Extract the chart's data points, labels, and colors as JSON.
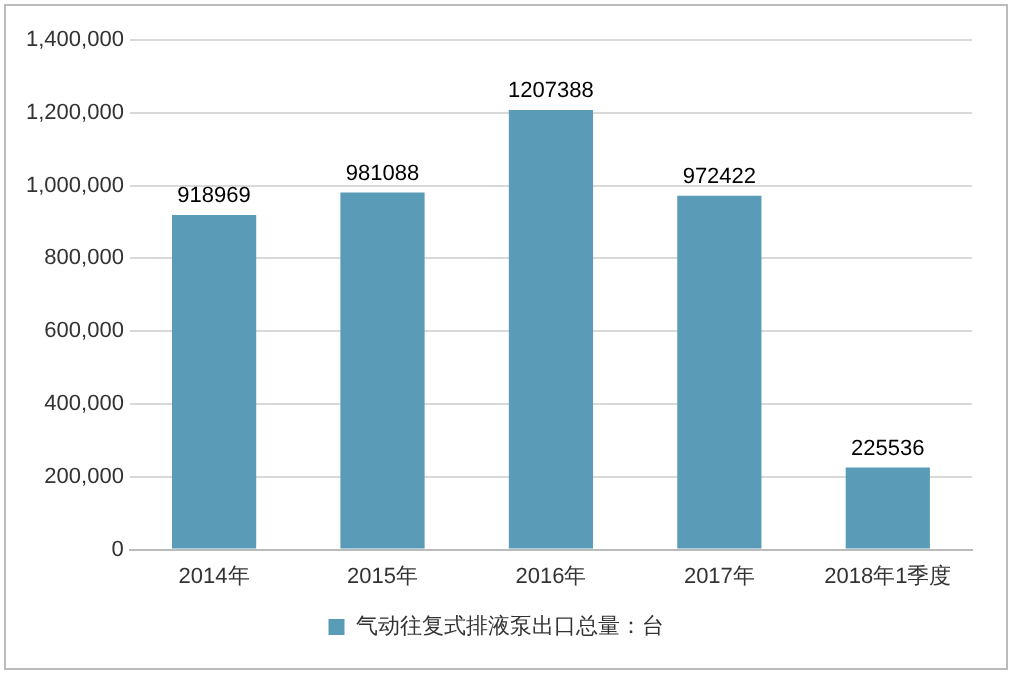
{
  "chart_data": {
    "type": "bar",
    "categories": [
      "2014年",
      "2015年",
      "2016年",
      "2017年",
      "2018年1季度"
    ],
    "series": [
      {
        "name": "气动往复式排液泵出口总量：台",
        "color": "#5a9bb8",
        "values": [
          918969,
          981088,
          1207388,
          972422,
          225536
        ]
      }
    ],
    "ylim": [
      0,
      1400000
    ],
    "yticks": [
      0,
      {
        "value": 200000,
        "label": "200,000"
      },
      {
        "value": 400000,
        "label": "400,000"
      },
      {
        "value": 600000,
        "label": "600,000"
      },
      {
        "value": 800000,
        "label": "800,000"
      },
      {
        "value": 1000000,
        "label": "1,000,000"
      },
      {
        "value": 1200000,
        "label": "1,200,000"
      },
      {
        "value": 1400000,
        "label": "1,400,000"
      }
    ],
    "grid": "y",
    "legend": "bottom",
    "data_labels": true
  }
}
